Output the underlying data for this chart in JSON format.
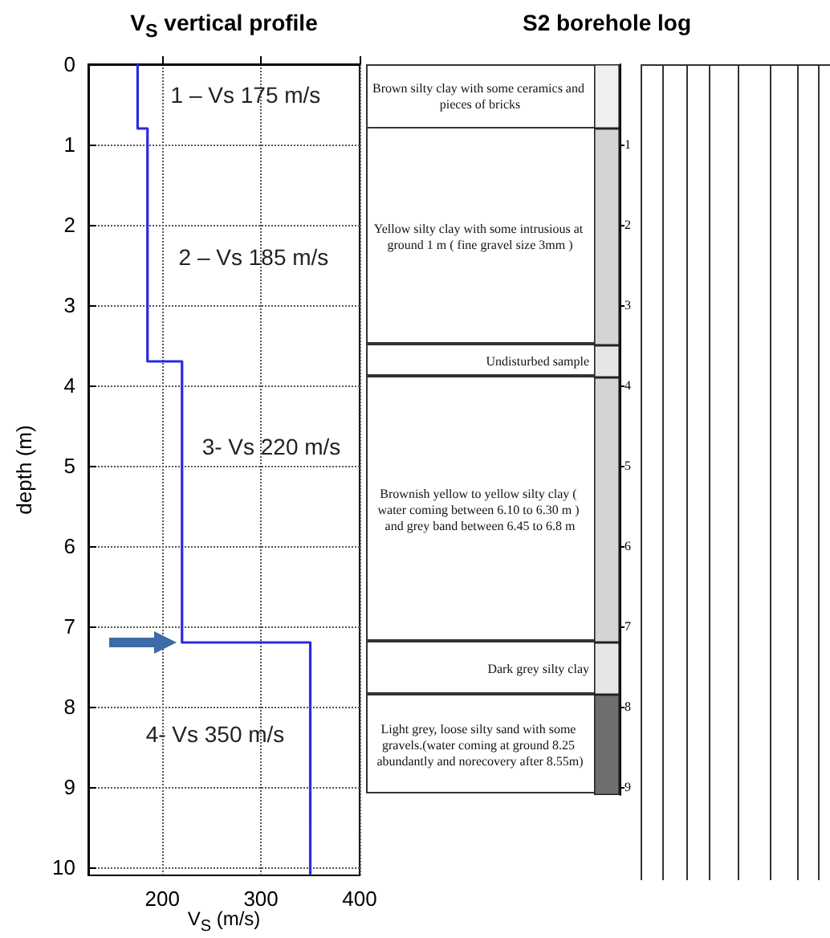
{
  "chart_data": [
    {
      "type": "line",
      "title": "V$_{S}$ vertical profile",
      "xlabel": "V$_{S}$ (m/s)",
      "ylabel": "depth (m)",
      "series": [
        {
          "color": "#2a2ae0",
          "x": [
            175,
            175,
            185,
            185,
            220,
            220,
            350,
            350
          ],
          "values": [
            0,
            0.8,
            0.8,
            3.7,
            3.7,
            7.2,
            7.2,
            10.1
          ]
        }
      ],
      "xlim": [
        125,
        400
      ],
      "ylim": [
        10.1,
        0
      ],
      "xticks": [
        200,
        300,
        400
      ],
      "yticks": [
        0,
        1,
        2,
        3,
        4,
        5,
        6,
        7,
        8,
        9,
        10
      ],
      "grid": true,
      "marker": "none",
      "annotations": [
        "1 – Vs 175 m/s",
        "2 – Vs 185 m/s",
        "3- Vs 220 m/s",
        "4- Vs 350 m/s"
      ]
    },
    {
      "type": "bar",
      "title": "S2 borehole log",
      "stacked": true,
      "categories": [
        null
      ],
      "legend": false,
      "tick_labels": "y",
      "series": [
        {
          "name": "Brown silty clay with some ceramics and pieces of bricks",
          "color": "#efefef",
          "values": [
            0.8
          ]
        },
        {
          "name": "Yellow silty clay with some intrusious at ground 1 m ( fine gravel size 3mm )",
          "color": "#d4d4d4",
          "values": [
            2.7
          ]
        },
        {
          "name": "Undisturbed sample",
          "color": "#e6e6e6",
          "values": [
            0.4
          ]
        },
        {
          "name": "Brownish yellow to yellow silty clay ( water coming between 6.10 to 6.30 m ) and grey band between 6.45 to 6.8 m",
          "color": "#d4d4d4",
          "values": [
            3.3
          ]
        },
        {
          "name": "Dark grey silty clay",
          "color": "#e6e6e6",
          "values": [
            0.65
          ]
        },
        {
          "name": "Light grey, loose silty sand with some gravels.(water coming at ground 8.25 abundantly and norecovery after 8.55m)",
          "color": "#6e6e6e",
          "values": [
            1.25
          ]
        }
      ],
      "ylim": [
        9.1,
        0
      ],
      "yticks": [
        1,
        2,
        3,
        4,
        5,
        6,
        7,
        8,
        9
      ]
    }
  ]
}
